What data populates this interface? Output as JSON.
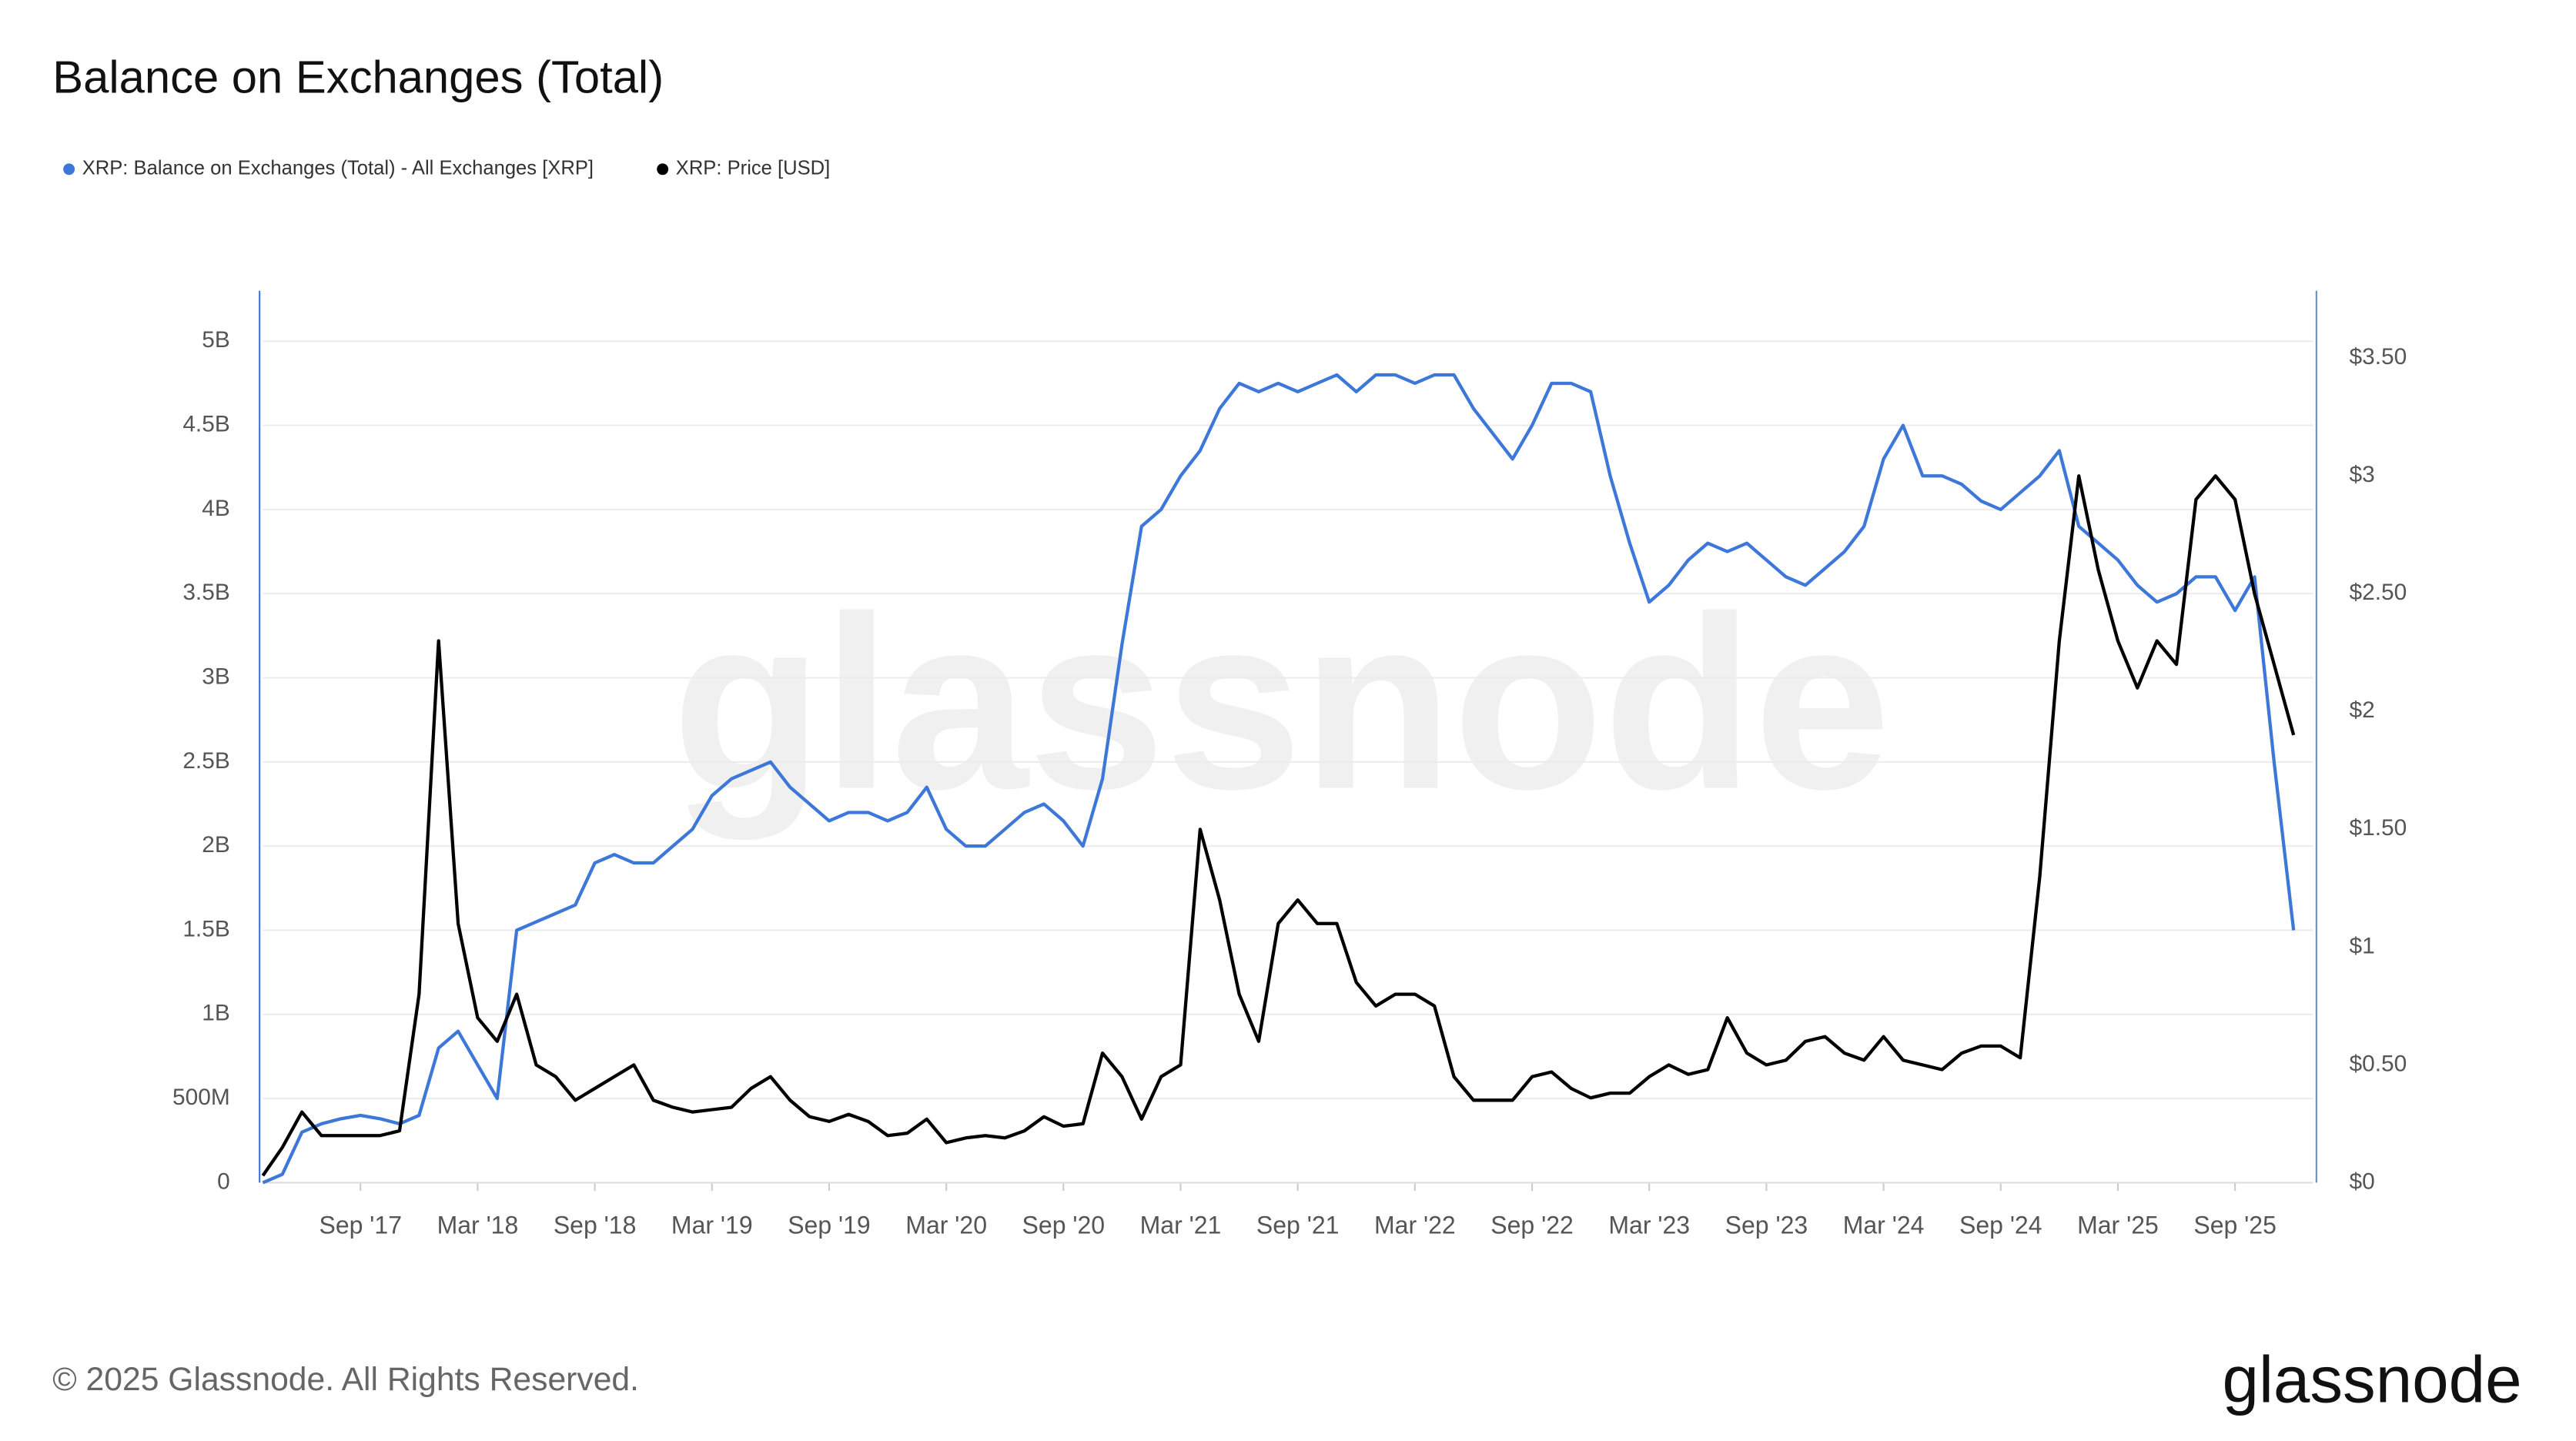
{
  "chart_data": {
    "type": "line",
    "title": "Balance on Exchanges (Total)",
    "watermark": "glassnode",
    "footer": "© 2025 Glassnode. All Rights Reserved.",
    "logo": "glassnode",
    "x": [
      "2017-04",
      "2017-05",
      "2017-06",
      "2017-07",
      "2017-08",
      "2017-09",
      "2017-10",
      "2017-11",
      "2017-12",
      "2018-01",
      "2018-02",
      "2018-03",
      "2018-04",
      "2018-05",
      "2018-06",
      "2018-07",
      "2018-08",
      "2018-09",
      "2018-10",
      "2018-11",
      "2018-12",
      "2019-01",
      "2019-02",
      "2019-03",
      "2019-04",
      "2019-05",
      "2019-06",
      "2019-07",
      "2019-08",
      "2019-09",
      "2019-10",
      "2019-11",
      "2019-12",
      "2020-01",
      "2020-02",
      "2020-03",
      "2020-04",
      "2020-05",
      "2020-06",
      "2020-07",
      "2020-08",
      "2020-09",
      "2020-10",
      "2020-11",
      "2020-12",
      "2021-01",
      "2021-02",
      "2021-03",
      "2021-04",
      "2021-05",
      "2021-06",
      "2021-07",
      "2021-08",
      "2021-09",
      "2021-10",
      "2021-11",
      "2021-12",
      "2022-01",
      "2022-02",
      "2022-03",
      "2022-04",
      "2022-05",
      "2022-06",
      "2022-07",
      "2022-08",
      "2022-09",
      "2022-10",
      "2022-11",
      "2022-12",
      "2023-01",
      "2023-02",
      "2023-03",
      "2023-04",
      "2023-05",
      "2023-06",
      "2023-07",
      "2023-08",
      "2023-09",
      "2023-10",
      "2023-11",
      "2023-12",
      "2024-01",
      "2024-02",
      "2024-03",
      "2024-04",
      "2024-05",
      "2024-06",
      "2024-07",
      "2024-08",
      "2024-09",
      "2024-10",
      "2024-11",
      "2024-12",
      "2025-01",
      "2025-02",
      "2025-03",
      "2025-04",
      "2025-05",
      "2025-06",
      "2025-07",
      "2025-08",
      "2025-09",
      "2025-10",
      "2025-11",
      "2025-12"
    ],
    "xlim": [
      "2017-04",
      "2026-01"
    ],
    "xticks": [
      {
        "value": "2017-09",
        "label": "Sep '17"
      },
      {
        "value": "2018-03",
        "label": "Mar '18"
      },
      {
        "value": "2018-09",
        "label": "Sep '18"
      },
      {
        "value": "2019-03",
        "label": "Mar '19"
      },
      {
        "value": "2019-09",
        "label": "Sep '19"
      },
      {
        "value": "2020-03",
        "label": "Mar '20"
      },
      {
        "value": "2020-09",
        "label": "Sep '20"
      },
      {
        "value": "2021-03",
        "label": "Mar '21"
      },
      {
        "value": "2021-09",
        "label": "Sep '21"
      },
      {
        "value": "2022-03",
        "label": "Mar '22"
      },
      {
        "value": "2022-09",
        "label": "Sep '22"
      },
      {
        "value": "2023-03",
        "label": "Mar '23"
      },
      {
        "value": "2023-09",
        "label": "Sep '23"
      },
      {
        "value": "2024-03",
        "label": "Mar '24"
      },
      {
        "value": "2024-09",
        "label": "Sep '24"
      },
      {
        "value": "2025-03",
        "label": "Mar '25"
      },
      {
        "value": "2025-09",
        "label": "Sep '25"
      }
    ],
    "ylim": [
      0,
      5300000000
    ],
    "yticks": [
      0,
      {
        "value": 500000000,
        "label": "500M"
      },
      {
        "value": 1000000000,
        "label": "1B"
      },
      {
        "value": 1500000000,
        "label": "1.5B"
      },
      {
        "value": 2000000000,
        "label": "2B"
      },
      {
        "value": 2500000000,
        "label": "2.5B"
      },
      {
        "value": 3000000000,
        "label": "3B"
      },
      {
        "value": 3500000000,
        "label": "3.5B"
      },
      {
        "value": 4000000000,
        "label": "4B"
      },
      {
        "value": 4500000000,
        "label": "4.5B"
      },
      {
        "value": 5000000000,
        "label": "5B"
      }
    ],
    "y2lim": [
      0,
      3.786
    ],
    "y2ticks": [
      {
        "value": 0,
        "label": "$0"
      },
      {
        "value": 0.5,
        "label": "$0.50"
      },
      {
        "value": 1,
        "label": "$1"
      },
      {
        "value": 1.5,
        "label": "$1.50"
      },
      {
        "value": 2,
        "label": "$2"
      },
      {
        "value": 2.5,
        "label": "$2.50"
      },
      {
        "value": 3,
        "label": "$3"
      },
      {
        "value": 3.5,
        "label": "$3.50"
      }
    ],
    "grid": true,
    "legend": "top-left",
    "series": [
      {
        "name": "XRP: Balance on Exchanges (Total) - All Exchanges [XRP]",
        "color": "#3d78d8",
        "values": [
          0,
          50000000,
          300000000,
          350000000,
          380000000,
          400000000,
          380000000,
          350000000,
          400000000,
          800000000,
          900000000,
          700000000,
          500000000,
          1500000000,
          1550000000,
          1600000000,
          1650000000,
          1900000000,
          1950000000,
          1900000000,
          1900000000,
          2000000000,
          2100000000,
          2300000000,
          2400000000,
          2450000000,
          2500000000,
          2350000000,
          2250000000,
          2150000000,
          2200000000,
          2200000000,
          2150000000,
          2200000000,
          2350000000,
          2100000000,
          2000000000,
          2000000000,
          2100000000,
          2200000000,
          2250000000,
          2150000000,
          2000000000,
          2400000000,
          3200000000,
          3900000000,
          4000000000,
          4200000000,
          4350000000,
          4600000000,
          4750000000,
          4700000000,
          4750000000,
          4700000000,
          4750000000,
          4800000000,
          4700000000,
          4800000000,
          4800000000,
          4750000000,
          4800000000,
          4800000000,
          4600000000,
          4450000000,
          4300000000,
          4500000000,
          4750000000,
          4750000000,
          4700000000,
          4200000000,
          3800000000,
          3450000000,
          3550000000,
          3700000000,
          3800000000,
          3750000000,
          3800000000,
          3700000000,
          3600000000,
          3550000000,
          3650000000,
          3750000000,
          3900000000,
          4300000000,
          4500000000,
          4200000000,
          4200000000,
          4150000000,
          4050000000,
          4000000000,
          4100000000,
          4200000000,
          4350000000,
          3900000000,
          3800000000,
          3700000000,
          3550000000,
          3450000000,
          3500000000,
          3600000000,
          3600000000,
          3400000000,
          3600000000,
          2500000000,
          1500000000
        ]
      },
      {
        "name": "XRP: Price [USD]",
        "color": "#000000",
        "axis": "y2",
        "values": [
          0.03,
          0.15,
          0.3,
          0.2,
          0.2,
          0.2,
          0.2,
          0.22,
          0.8,
          2.3,
          1.1,
          0.7,
          0.6,
          0.8,
          0.5,
          0.45,
          0.35,
          0.4,
          0.45,
          0.5,
          0.35,
          0.32,
          0.3,
          0.31,
          0.32,
          0.4,
          0.45,
          0.35,
          0.28,
          0.26,
          0.29,
          0.26,
          0.2,
          0.21,
          0.27,
          0.17,
          0.19,
          0.2,
          0.19,
          0.22,
          0.28,
          0.24,
          0.25,
          0.55,
          0.45,
          0.27,
          0.45,
          0.5,
          1.5,
          1.2,
          0.8,
          0.6,
          1.1,
          1.2,
          1.1,
          1.1,
          0.85,
          0.75,
          0.8,
          0.8,
          0.75,
          0.45,
          0.35,
          0.35,
          0.35,
          0.45,
          0.47,
          0.4,
          0.36,
          0.38,
          0.38,
          0.45,
          0.5,
          0.46,
          0.48,
          0.7,
          0.55,
          0.5,
          0.52,
          0.6,
          0.62,
          0.55,
          0.52,
          0.62,
          0.52,
          0.5,
          0.48,
          0.55,
          0.58,
          0.58,
          0.53,
          1.3,
          2.3,
          3.0,
          2.6,
          2.3,
          2.1,
          2.3,
          2.2,
          2.9,
          3.0,
          2.9,
          2.5,
          2.2,
          1.9
        ]
      }
    ]
  }
}
